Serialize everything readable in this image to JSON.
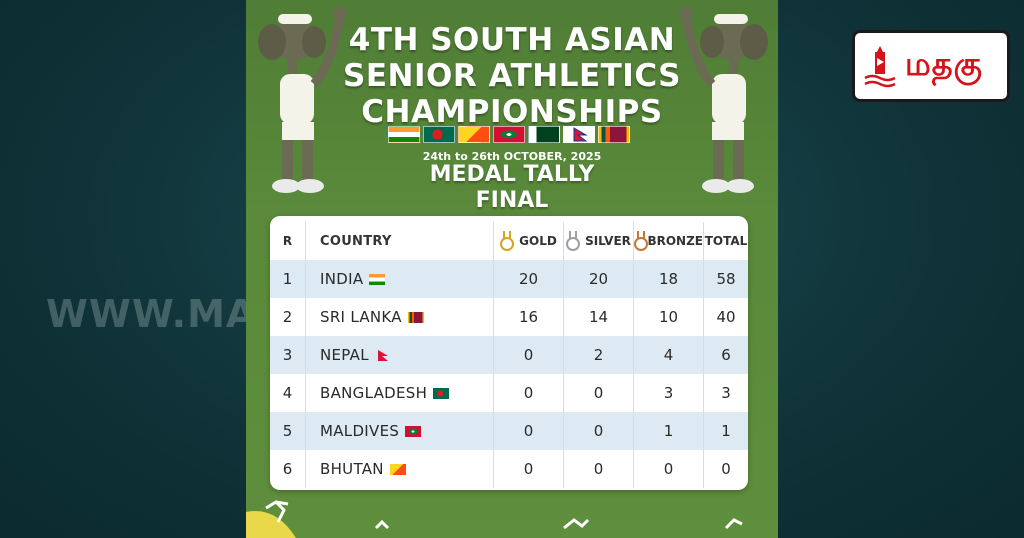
{
  "poster": {
    "title_line1": "4TH SOUTH ASIAN",
    "title_line2": "SENIOR ATHLETICS",
    "title_line3": "CHAMPIONSHIPS",
    "dates": "24th to 26th OCTOBER, 2025",
    "tally_line1": "MEDAL TALLY",
    "tally_line2": "FINAL"
  },
  "watermark": "WWW.MATHA",
  "logo": {
    "text": "மதகு"
  },
  "table": {
    "headers": {
      "rank": "R",
      "country": "COUNTRY",
      "gold": "GOLD",
      "silver": "SILVER",
      "bronze": "BRONZE",
      "total": "TOTAL"
    },
    "rows": [
      {
        "rank": "1",
        "country": "INDIA",
        "gold": "20",
        "silver": "20",
        "bronze": "18",
        "total": "58"
      },
      {
        "rank": "2",
        "country": "SRI LANKA",
        "gold": "16",
        "silver": "14",
        "bronze": "10",
        "total": "40"
      },
      {
        "rank": "3",
        "country": "NEPAL",
        "gold": "0",
        "silver": "2",
        "bronze": "4",
        "total": "6"
      },
      {
        "rank": "4",
        "country": "BANGLADESH",
        "gold": "0",
        "silver": "0",
        "bronze": "3",
        "total": "3"
      },
      {
        "rank": "5",
        "country": "MALDIVES",
        "gold": "0",
        "silver": "0",
        "bronze": "1",
        "total": "1"
      },
      {
        "rank": "6",
        "country": "BHUTAN",
        "gold": "0",
        "silver": "0",
        "bronze": "0",
        "total": "0"
      }
    ]
  },
  "colors": {
    "gold": "#d6a51c",
    "silver": "#9aa0a6",
    "bronze": "#c2773a",
    "row_alt": "#dde9f3",
    "poster_green": "#5a8a3a",
    "logo_red": "#d4141b"
  }
}
